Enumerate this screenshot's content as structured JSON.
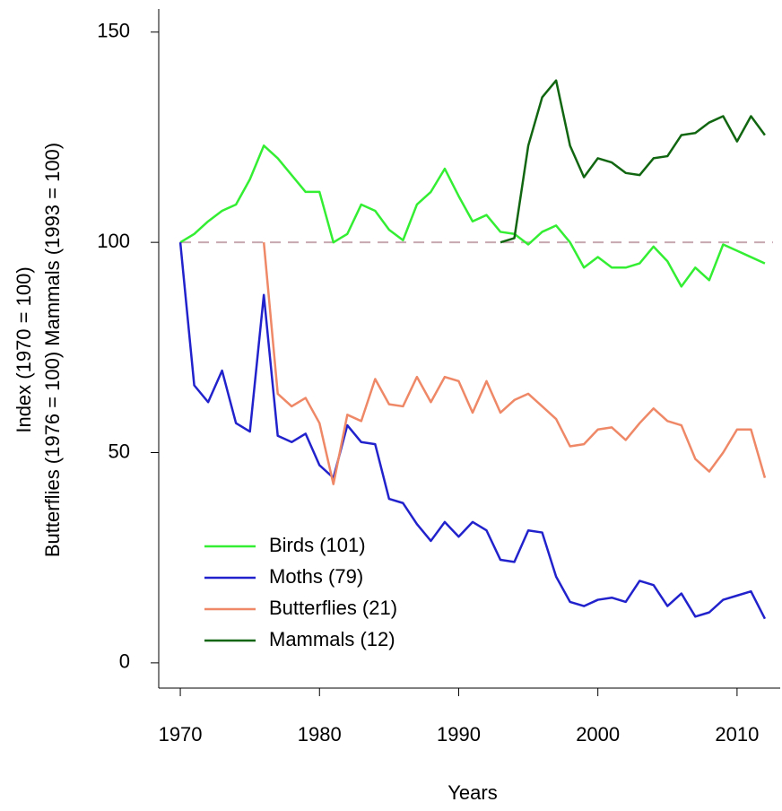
{
  "chart_data": {
    "type": "line",
    "xlabel": "Years",
    "ylabel": [
      "Index (1970 = 100)",
      "Butterflies (1976 = 100) Mammals (1993 = 100)"
    ],
    "x": [
      1970,
      1971,
      1972,
      1973,
      1974,
      1975,
      1976,
      1977,
      1978,
      1979,
      1980,
      1981,
      1982,
      1983,
      1984,
      1985,
      1986,
      1987,
      1988,
      1989,
      1990,
      1991,
      1992,
      1993,
      1994,
      1995,
      1996,
      1997,
      1998,
      1999,
      2000,
      2001,
      2002,
      2003,
      2004,
      2005,
      2006,
      2007,
      2008,
      2009,
      2010,
      2011,
      2012
    ],
    "series": [
      {
        "name": "Birds (101)",
        "color": "#33ee33",
        "values": [
          100,
          102,
          105,
          107.5,
          109,
          115,
          123,
          120,
          116,
          112,
          112,
          100,
          102,
          109,
          107.5,
          103,
          100.5,
          109,
          112,
          117.5,
          111,
          105,
          106.5,
          102.5,
          102,
          99.5,
          102.5,
          104,
          100,
          94,
          96.5,
          94,
          94,
          95,
          99,
          95.5,
          89.5,
          94,
          91,
          99.5,
          98,
          96.5,
          95
        ]
      },
      {
        "name": "Moths (79)",
        "color": "#2222cc",
        "values": [
          100,
          66,
          62,
          69.5,
          57,
          55,
          87.5,
          54,
          52.5,
          54.5,
          47,
          44,
          56.5,
          52.5,
          52,
          39,
          38,
          33,
          29,
          33.5,
          30,
          33.5,
          31.5,
          24.5,
          24,
          31.5,
          31,
          20.5,
          14.5,
          13.5,
          15,
          15.5,
          14.5,
          19.5,
          18.5,
          13.5,
          16.5,
          11,
          12,
          15,
          16,
          17,
          10.5
        ]
      },
      {
        "name": "Butterflies (21)",
        "color": "#ee8866",
        "values": [
          null,
          null,
          null,
          null,
          null,
          null,
          100,
          64,
          61,
          63,
          57,
          42.5,
          59,
          57.5,
          67.5,
          61.5,
          61,
          68,
          62,
          68,
          67,
          59.5,
          67,
          59.5,
          62.5,
          64,
          61,
          58,
          51.5,
          52,
          55.5,
          56,
          53,
          57,
          60.5,
          57.5,
          56.5,
          48.5,
          45.5,
          50,
          55.5,
          55.5,
          44
        ]
      },
      {
        "name": "Mammals (12)",
        "color": "#116611",
        "values": [
          null,
          null,
          null,
          null,
          null,
          null,
          null,
          null,
          null,
          null,
          null,
          null,
          null,
          null,
          null,
          null,
          null,
          null,
          null,
          null,
          null,
          null,
          null,
          100,
          101,
          123,
          134.5,
          138.5,
          123,
          115.5,
          120,
          119,
          116.5,
          116,
          120,
          120.5,
          125.5,
          126,
          128.5,
          130,
          124,
          130,
          125.5
        ]
      }
    ],
    "reference_line": 100,
    "xlim": [
      1968.45,
      2013.1
    ],
    "xticks": [
      1970,
      1980,
      1990,
      2000,
      2010
    ],
    "ylim": [
      -6,
      155.5
    ],
    "yticks": [
      0,
      50,
      100,
      150
    ],
    "legend": "bottom-left"
  }
}
